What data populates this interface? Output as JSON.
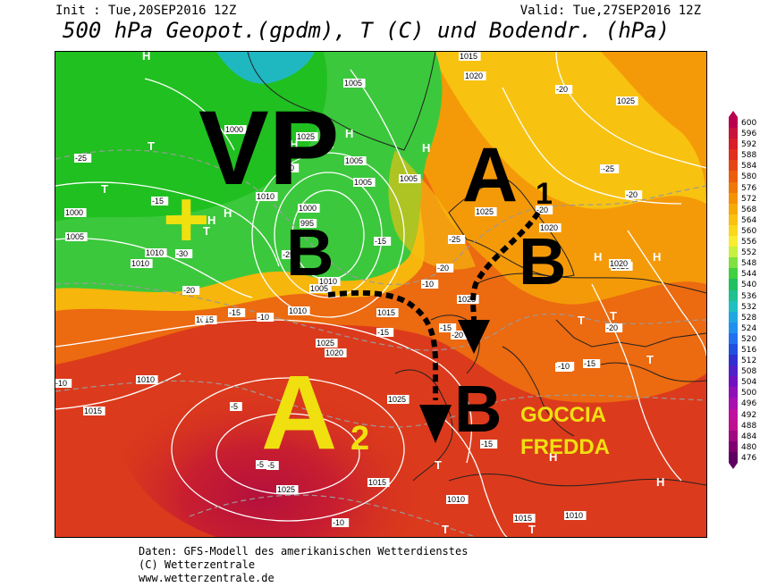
{
  "header": {
    "init": "Init : Tue,20SEP2016 12Z",
    "valid": "Valid: Tue,27SEP2016 12Z",
    "title": "500 hPa Geopot.(gpdm), T (C) und Bodendr. (hPa)"
  },
  "footer": {
    "line1": "Daten: GFS-Modell des amerikanischen Wetterdienstes",
    "line2": "(C) Wetterzentrale",
    "line3": "www.wetterzentrale.de"
  },
  "legend": {
    "values": [
      "600",
      "596",
      "592",
      "588",
      "584",
      "580",
      "576",
      "572",
      "568",
      "564",
      "560",
      "556",
      "552",
      "548",
      "544",
      "540",
      "536",
      "532",
      "528",
      "524",
      "520",
      "516",
      "512",
      "508",
      "504",
      "500",
      "496",
      "492",
      "488",
      "484",
      "480",
      "476"
    ],
    "colors": [
      "#b8004e",
      "#c8143c",
      "#d81e28",
      "#e0301e",
      "#e64614",
      "#ec5e0c",
      "#f07808",
      "#f49206",
      "#f6aa08",
      "#f8c20e",
      "#fad81c",
      "#f8ec30",
      "#c8f040",
      "#80e040",
      "#40d040",
      "#20c060",
      "#20c090",
      "#20c0c0",
      "#20a8e0",
      "#2090f0",
      "#2070f0",
      "#2050e0",
      "#3030d0",
      "#5020c8",
      "#7010c0",
      "#9010b8",
      "#a810b0",
      "#c010a0",
      "#c01090",
      "#a00880",
      "#800070",
      "#600060"
    ]
  },
  "overlay": {
    "vp": "VP",
    "a1_main": "A",
    "a1_sub": "1",
    "a2_main": "A",
    "a2_sub": "2",
    "b_atlantic": "B",
    "b_scandinavia": "B",
    "b_europe": "B",
    "plus": "+",
    "goccia_line1": "GOCCIA",
    "goccia_line2": "FREDDA"
  },
  "map_labels": {
    "isobars": [
      {
        "t": "1015"
      },
      {
        "t": "1020"
      },
      {
        "t": "1025"
      },
      {
        "t": "1005"
      },
      {
        "t": "1025"
      },
      {
        "t": "1010"
      },
      {
        "t": "1005"
      },
      {
        "t": "1000"
      },
      {
        "t": "995"
      },
      {
        "t": "1005"
      },
      {
        "t": "1005"
      },
      {
        "t": "1010"
      },
      {
        "t": "1000"
      },
      {
        "t": "1005"
      },
      {
        "t": "1010"
      },
      {
        "t": "1015"
      },
      {
        "t": "1025"
      },
      {
        "t": "1020"
      },
      {
        "t": "1010"
      },
      {
        "t": "1015"
      },
      {
        "t": "1025"
      },
      {
        "t": "1025"
      },
      {
        "t": "1025"
      },
      {
        "t": "1020"
      },
      {
        "t": "1015"
      },
      {
        "t": "1010"
      },
      {
        "t": "1020"
      },
      {
        "t": "1015"
      },
      {
        "t": "1010"
      },
      {
        "t": "1015"
      },
      {
        "t": "1010"
      },
      {
        "t": "1000"
      },
      {
        "t": "1010"
      },
      {
        "t": "1005"
      },
      {
        "t": "1020"
      },
      {
        "t": "1025"
      }
    ],
    "temps": [
      {
        "t": "-25"
      },
      {
        "t": "-20"
      },
      {
        "t": "-25"
      },
      {
        "t": "-20"
      },
      {
        "t": "-25"
      },
      {
        "t": "-20"
      },
      {
        "t": "-15"
      },
      {
        "t": "-30"
      },
      {
        "t": "-25"
      },
      {
        "t": "-20"
      },
      {
        "t": "-15"
      },
      {
        "t": "-15"
      },
      {
        "t": "-10"
      },
      {
        "t": "-10"
      },
      {
        "t": "-5"
      },
      {
        "t": "-5"
      },
      {
        "t": "-10"
      },
      {
        "t": "-15"
      },
      {
        "t": "-15"
      },
      {
        "t": "-20"
      },
      {
        "t": "-15"
      },
      {
        "t": "-10"
      },
      {
        "t": "-30"
      },
      {
        "t": "-25"
      },
      {
        "t": "-20"
      },
      {
        "t": "-15"
      },
      {
        "t": "-20"
      },
      {
        "t": "-15"
      },
      {
        "t": "-10"
      },
      {
        "t": "-5"
      }
    ],
    "markers": [
      {
        "t": "H"
      },
      {
        "t": "H"
      },
      {
        "t": "H"
      },
      {
        "t": "H"
      },
      {
        "t": "H"
      },
      {
        "t": "H"
      },
      {
        "t": "H"
      },
      {
        "t": "H"
      },
      {
        "t": "H"
      },
      {
        "t": "H"
      },
      {
        "t": "H"
      },
      {
        "t": "T"
      },
      {
        "t": "T"
      },
      {
        "t": "T"
      },
      {
        "t": "T"
      },
      {
        "t": "T"
      },
      {
        "t": "T"
      },
      {
        "t": "T"
      },
      {
        "t": "T"
      },
      {
        "t": "T"
      },
      {
        "t": "T"
      }
    ]
  }
}
